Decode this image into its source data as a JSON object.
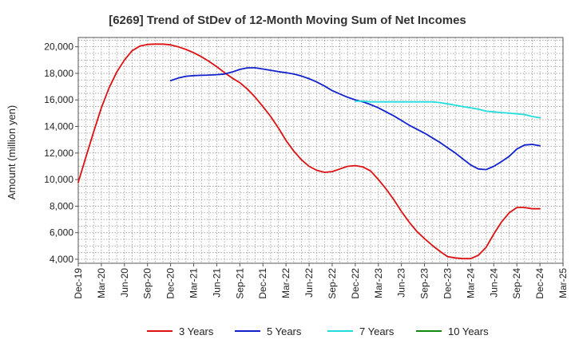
{
  "chart_data": {
    "type": "line",
    "title": "[6269]  Trend of StDev of 12-Month Moving Sum of Net Incomes",
    "ylabel": "Amount (million yen)",
    "xlabel": "",
    "ylim": [
      3700,
      20700
    ],
    "y_ticks": [
      4000,
      6000,
      8000,
      10000,
      12000,
      14000,
      16000,
      18000,
      20000
    ],
    "y_tick_labels": [
      "4,000",
      "6,000",
      "8,000",
      "10,000",
      "12,000",
      "14,000",
      "16,000",
      "18,000",
      "20,000"
    ],
    "x_ticks": [
      "2019-12",
      "2020-03",
      "2020-06",
      "2020-09",
      "2020-12",
      "2021-03",
      "2021-06",
      "2021-09",
      "2021-12",
      "2022-03",
      "2022-06",
      "2022-09",
      "2022-12",
      "2023-03",
      "2023-06",
      "2023-09",
      "2023-12",
      "2024-03",
      "2024-06",
      "2024-09",
      "2024-12",
      "2025-03"
    ],
    "x_tick_labels": [
      "Dec-19",
      "Mar-20",
      "Jun-20",
      "Sep-20",
      "Dec-20",
      "Mar-21",
      "Jun-21",
      "Sep-21",
      "Dec-21",
      "Mar-22",
      "Jun-22",
      "Sep-22",
      "Dec-22",
      "Mar-23",
      "Jun-23",
      "Sep-23",
      "Dec-23",
      "Mar-24",
      "Jun-24",
      "Sep-24",
      "Dec-24",
      "Mar-25"
    ],
    "grid": true,
    "legend_position": "bottom",
    "series": [
      {
        "name": "3 Years",
        "color": "#dd1111",
        "x": [
          "2019-12",
          "2020-01",
          "2020-02",
          "2020-03",
          "2020-04",
          "2020-05",
          "2020-06",
          "2020-07",
          "2020-08",
          "2020-09",
          "2020-10",
          "2020-11",
          "2020-12",
          "2021-01",
          "2021-02",
          "2021-03",
          "2021-04",
          "2021-05",
          "2021-06",
          "2021-07",
          "2021-08",
          "2021-09",
          "2021-10",
          "2021-11",
          "2021-12",
          "2022-01",
          "2022-02",
          "2022-03",
          "2022-04",
          "2022-05",
          "2022-06",
          "2022-07",
          "2022-08",
          "2022-09",
          "2022-10",
          "2022-11",
          "2022-12",
          "2023-01",
          "2023-02",
          "2023-03",
          "2023-04",
          "2023-05",
          "2023-06",
          "2023-07",
          "2023-08",
          "2023-09",
          "2023-10",
          "2023-11",
          "2023-12",
          "2024-01",
          "2024-02",
          "2024-03",
          "2024-04",
          "2024-05",
          "2024-06",
          "2024-07",
          "2024-08",
          "2024-09",
          "2024-10",
          "2024-11",
          "2024-12"
        ],
        "values": [
          9800,
          11700,
          13600,
          15400,
          16900,
          18100,
          19000,
          19700,
          20050,
          20180,
          20200,
          20200,
          20150,
          20000,
          19800,
          19550,
          19250,
          18900,
          18500,
          18050,
          17650,
          17300,
          16800,
          16200,
          15500,
          14750,
          13900,
          12950,
          12150,
          11500,
          11000,
          10700,
          10550,
          10600,
          10800,
          11000,
          11050,
          10950,
          10650,
          10000,
          9300,
          8500,
          7600,
          6800,
          6100,
          5550,
          5050,
          4600,
          4200,
          4100,
          4050,
          4050,
          4300,
          4900,
          5900,
          6800,
          7500,
          7900,
          7900,
          7800,
          7800
        ]
      },
      {
        "name": "5 Years",
        "color": "#1122cc",
        "x": [
          "2020-12",
          "2021-01",
          "2021-02",
          "2021-03",
          "2021-04",
          "2021-05",
          "2021-06",
          "2021-07",
          "2021-08",
          "2021-09",
          "2021-10",
          "2021-11",
          "2021-12",
          "2022-01",
          "2022-02",
          "2022-03",
          "2022-04",
          "2022-05",
          "2022-06",
          "2022-07",
          "2022-08",
          "2022-09",
          "2022-10",
          "2022-11",
          "2022-12",
          "2023-01",
          "2023-02",
          "2023-03",
          "2023-04",
          "2023-05",
          "2023-06",
          "2023-07",
          "2023-08",
          "2023-09",
          "2023-10",
          "2023-11",
          "2023-12",
          "2024-01",
          "2024-02",
          "2024-03",
          "2024-04",
          "2024-05",
          "2024-06",
          "2024-07",
          "2024-08",
          "2024-09",
          "2024-10",
          "2024-11",
          "2024-12"
        ],
        "values": [
          17450,
          17650,
          17780,
          17830,
          17850,
          17870,
          17900,
          17950,
          18100,
          18300,
          18420,
          18420,
          18330,
          18230,
          18130,
          18050,
          17950,
          17800,
          17600,
          17350,
          17050,
          16700,
          16450,
          16200,
          16000,
          15850,
          15650,
          15400,
          15100,
          14800,
          14450,
          14100,
          13800,
          13500,
          13150,
          12800,
          12400,
          12000,
          11550,
          11100,
          10800,
          10750,
          11000,
          11350,
          11750,
          12300,
          12600,
          12650,
          12550
        ]
      },
      {
        "name": "7 Years",
        "color": "#22dddd",
        "x": [
          "2022-12",
          "2023-01",
          "2023-02",
          "2023-03",
          "2023-04",
          "2023-05",
          "2023-06",
          "2023-07",
          "2023-08",
          "2023-09",
          "2023-10",
          "2023-11",
          "2023-12",
          "2024-01",
          "2024-02",
          "2024-03",
          "2024-04",
          "2024-05",
          "2024-06",
          "2024-07",
          "2024-08",
          "2024-09",
          "2024-10",
          "2024-11",
          "2024-12"
        ],
        "values": [
          15900,
          15900,
          15850,
          15850,
          15850,
          15850,
          15850,
          15850,
          15850,
          15850,
          15850,
          15800,
          15700,
          15600,
          15500,
          15400,
          15300,
          15150,
          15100,
          15050,
          15000,
          14950,
          14900,
          14750,
          14650
        ]
      },
      {
        "name": "10 Years",
        "color": "#118811",
        "x": [],
        "values": []
      }
    ]
  }
}
